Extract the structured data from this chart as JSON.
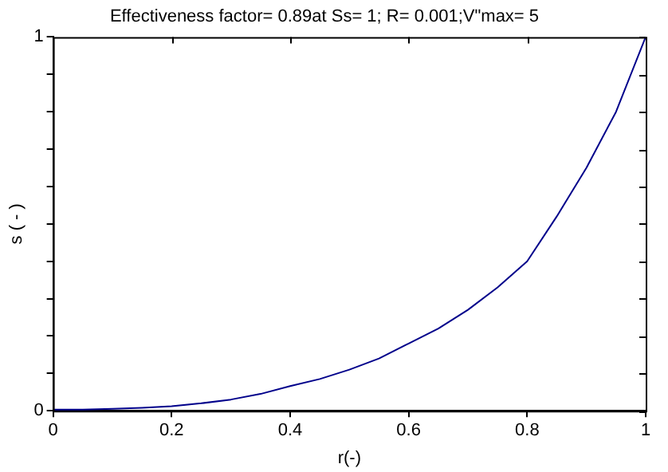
{
  "chart_data": {
    "type": "line",
    "title": "Effectiveness factor= 0.89at Ss= 1; R= 0.001;V\"max= 5",
    "xlabel": "r(-)",
    "ylabel": "s ( - )",
    "x": [
      0,
      0.05,
      0.1,
      0.15,
      0.2,
      0.25,
      0.3,
      0.35,
      0.4,
      0.45,
      0.5,
      0.55,
      0.6,
      0.65,
      0.7,
      0.75,
      0.8,
      0.85,
      0.9,
      0.95,
      1
    ],
    "series": [
      {
        "color": "#00008b",
        "values": [
          0.003,
          0.003,
          0.005,
          0.008,
          0.012,
          0.02,
          0.03,
          0.045,
          0.066,
          0.085,
          0.11,
          0.14,
          0.18,
          0.22,
          0.27,
          0.33,
          0.4,
          0.52,
          0.65,
          0.8,
          1
        ]
      }
    ],
    "xlim": [
      0,
      1
    ],
    "xticks": [
      0,
      0.2,
      0.4,
      0.6,
      0.8,
      1
    ],
    "ylim": [
      0,
      1
    ],
    "yticks": [
      0,
      {
        "value": 0.1,
        "label": null
      },
      {
        "value": 0.2,
        "label": null
      },
      {
        "value": 0.3,
        "label": null
      },
      {
        "value": 0.4,
        "label": null
      },
      {
        "value": 0.5,
        "label": null
      },
      {
        "value": 0.6,
        "label": null
      },
      {
        "value": 0.7,
        "label": null
      },
      {
        "value": 0.8,
        "label": null
      },
      {
        "value": 0.9,
        "label": null
      },
      1
    ],
    "grid": false,
    "legend": false,
    "marker": "none",
    "line_style": "solid"
  }
}
